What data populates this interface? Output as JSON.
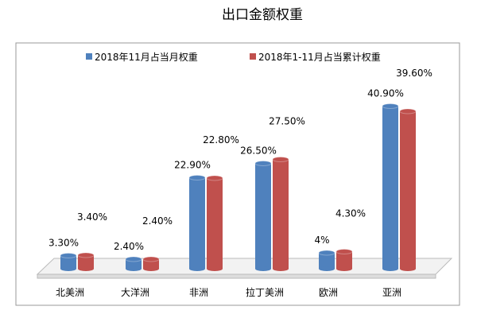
{
  "chart_data": {
    "type": "bar",
    "title": "出口金额权重",
    "categories": [
      "北美洲",
      "大洋洲",
      "非洲",
      "拉丁美洲",
      "欧洲",
      "亚洲"
    ],
    "series": [
      {
        "name": "2018年11月占当月权重",
        "color": "#4f81bd",
        "values": [
          3.3,
          2.4,
          22.9,
          26.5,
          4.0,
          40.9
        ],
        "labels": [
          "3.30%",
          "2.40%",
          "22.90%",
          "26.50%",
          "4%",
          "40.90%"
        ]
      },
      {
        "name": "2018年1-11月占当累计权重",
        "color": "#c0504d",
        "values": [
          3.4,
          2.4,
          22.8,
          27.5,
          4.3,
          39.6
        ],
        "labels": [
          "3.40%",
          "2.40%",
          "22.80%",
          "27.50%",
          "4.30%",
          "39.60%"
        ]
      }
    ],
    "xlabel": "",
    "ylabel": "",
    "ylim": [
      0,
      45
    ],
    "grid": false,
    "legend": "top"
  }
}
